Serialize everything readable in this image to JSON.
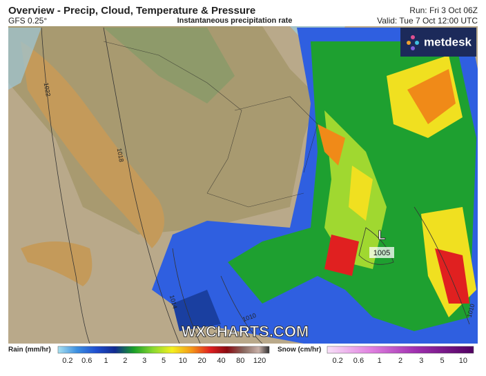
{
  "header": {
    "title": "Overview - Precip, Cloud, Temperature & Pressure",
    "model": "GFS 0.25°",
    "subtitle": "Instantaneous precipitation rate",
    "run": "Run: Fri 3 Oct 06Z",
    "valid": "Valid: Tue 7 Oct 12:00 UTC"
  },
  "map": {
    "logo": "metdesk",
    "watermark": "WXCHARTS.COM",
    "low": {
      "symbol": "L",
      "pressure": "1005"
    },
    "isobars": [
      "1022",
      "1018",
      "1014",
      "1010",
      "1010"
    ]
  },
  "legend": {
    "rain": {
      "title": "Rain (mm/hr)",
      "ticks": [
        "0.2",
        "0.6",
        "1",
        "2",
        "3",
        "5",
        "10",
        "20",
        "40",
        "80",
        "120"
      ]
    },
    "snow": {
      "title": "Snow (cm/hr)",
      "ticks": [
        "0.2",
        "0.6",
        "1",
        "2",
        "3",
        "5",
        "10"
      ]
    }
  }
}
